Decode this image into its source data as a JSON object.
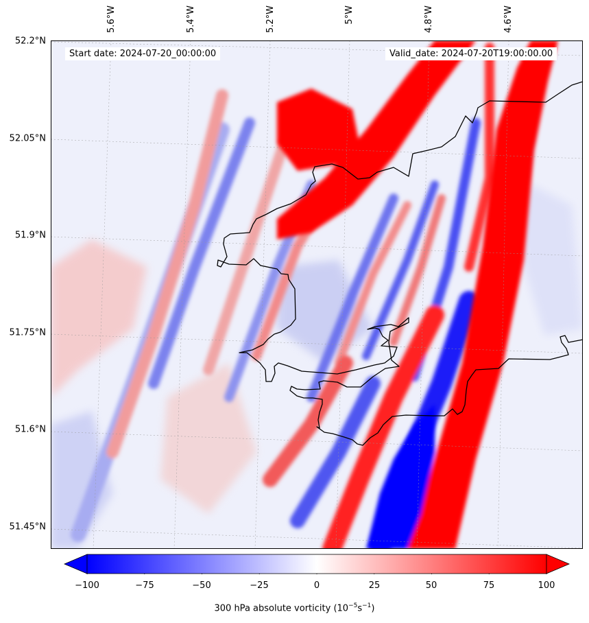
{
  "map": {
    "start_date": "Start date: 2024-07-20_00:00:00",
    "valid_date": "Valid_date: 2024-07-20T19:00:00.00",
    "lat_labels": [
      "52.2°N",
      "52.05°N",
      "51.9°N",
      "51.75°N",
      "51.6°N",
      "51.45°N"
    ],
    "lon_labels": [
      "5.6°W",
      "5.4°W",
      "5.2°W",
      "5°W",
      "4.8°W",
      "4.6°W"
    ],
    "coastline_color": "#000000",
    "gridline_style": "dotted"
  },
  "colorbar": {
    "ticks": [
      "−100",
      "−75",
      "−50",
      "−25",
      "0",
      "25",
      "50",
      "75",
      "100"
    ],
    "label_prefix": "300 hPa absolute vorticity (10",
    "label_exp1": "−5",
    "label_mid": "s",
    "label_exp2": "−1",
    "label_suffix": ")",
    "min_color": "#0000ff",
    "mid_color": "#ffffff",
    "max_color": "#ff0000"
  }
}
